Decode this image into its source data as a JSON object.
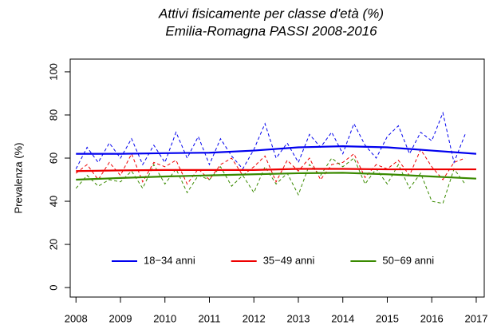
{
  "chart_data": {
    "type": "line",
    "title": "Attivi fisicamente per classe d'età (%)",
    "subtitle": "Emilia-Romagna PASSI 2008-2016",
    "y_label": "Prevalenza (%)",
    "x": [
      2008,
      2008.25,
      2008.5,
      2008.75,
      2009,
      2009.25,
      2009.5,
      2009.75,
      2010,
      2010.25,
      2010.5,
      2010.75,
      2011,
      2011.25,
      2011.5,
      2011.75,
      2012,
      2012.25,
      2012.5,
      2012.75,
      2013,
      2013.25,
      2013.5,
      2013.75,
      2014,
      2014.25,
      2014.5,
      2014.75,
      2015,
      2015.25,
      2015.5,
      2015.75,
      2016,
      2016.25,
      2016.5,
      2016.75
    ],
    "trend_x": [
      2008,
      2009,
      2010,
      2011,
      2012,
      2013,
      2014,
      2015,
      2016,
      2017
    ],
    "series": [
      {
        "name": "18−34 anni",
        "color": "#0000ee",
        "values": [
          55,
          65,
          58,
          67,
          60,
          69,
          57,
          66,
          58,
          72,
          60,
          70,
          57,
          69,
          61,
          55,
          64,
          76,
          60,
          67,
          58,
          71,
          65,
          72,
          62,
          76,
          66,
          60,
          70,
          75,
          62,
          72,
          68,
          81,
          58,
          71
        ],
        "trend": [
          62,
          62,
          62.3,
          62.5,
          63.5,
          65,
          65.5,
          65,
          63.5,
          62
        ]
      },
      {
        "name": "35−49 anni",
        "color": "#ee0000",
        "values": [
          53,
          57,
          50,
          58,
          52,
          62,
          49,
          58,
          56,
          59,
          48,
          55,
          50,
          57,
          60,
          52,
          56,
          61,
          49,
          59,
          54,
          60,
          50,
          57,
          58,
          62,
          51,
          57,
          55,
          59,
          52,
          64,
          56,
          50,
          58,
          60
        ],
        "trend": [
          54,
          54.3,
          54.5,
          54.5,
          54.5,
          55,
          55,
          54.8,
          54.8,
          54.8
        ]
      },
      {
        "name": "50−69 anni",
        "color": "#3a8a00",
        "values": [
          46,
          52,
          47,
          50,
          49,
          54,
          46,
          57,
          48,
          55,
          44,
          52,
          50,
          56,
          47,
          52,
          44,
          56,
          48,
          53,
          43,
          57,
          52,
          60,
          56,
          60,
          48,
          55,
          48,
          57,
          46,
          53,
          40,
          39,
          55,
          48
        ],
        "trend": [
          50,
          50.8,
          51.5,
          52,
          52.5,
          53,
          53.2,
          52.5,
          51.5,
          50.5
        ]
      }
    ],
    "xlim": [
      2007.87,
      2017.18
    ],
    "ylim": [
      -4.4,
      105.9
    ],
    "xticks": [
      2008,
      2009,
      2010,
      2011,
      2012,
      2013,
      2014,
      2015,
      2016,
      2017
    ],
    "yticks": [
      0,
      20,
      40,
      60,
      80,
      100
    ],
    "legend_position": "bottom"
  }
}
